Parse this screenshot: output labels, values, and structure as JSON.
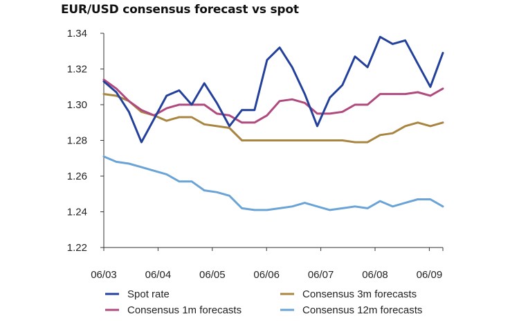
{
  "chart_data": {
    "type": "line",
    "title": "EUR/USD consensus forecast vs spot",
    "xlabel": "",
    "ylabel": "",
    "ylim": [
      1.22,
      1.34
    ],
    "yticks": [
      "1.22",
      "1.24",
      "1.26",
      "1.28",
      "1.30",
      "1.32",
      "1.34"
    ],
    "ytick_values": [
      1.22,
      1.24,
      1.26,
      1.28,
      1.3,
      1.32,
      1.34
    ],
    "xticks": [
      "06/03",
      "06/04",
      "06/05",
      "06/06",
      "06/07",
      "06/08",
      "06/09"
    ],
    "x_index_range": [
      0,
      25
    ],
    "xtick_positions": [
      0,
      4,
      8,
      12,
      16,
      20,
      24
    ],
    "series": [
      {
        "name": "Spot rate",
        "color": "#23409a",
        "values": [
          1.313,
          1.307,
          1.296,
          1.279,
          1.292,
          1.305,
          1.308,
          1.3,
          1.312,
          1.301,
          1.288,
          1.297,
          1.297,
          1.325,
          1.332,
          1.321,
          1.306,
          1.288,
          1.304,
          1.311,
          1.327,
          1.321,
          1.338,
          1.334,
          1.336,
          1.323,
          1.31,
          1.329
        ]
      },
      {
        "name": "Consensus 1m forecasts",
        "color": "#b04a7e",
        "values": [
          1.314,
          1.309,
          1.302,
          1.297,
          1.294,
          1.298,
          1.3,
          1.3,
          1.3,
          1.295,
          1.294,
          1.29,
          1.29,
          1.294,
          1.302,
          1.303,
          1.301,
          1.295,
          1.295,
          1.296,
          1.3,
          1.3,
          1.306,
          1.306,
          1.306,
          1.307,
          1.305,
          1.309
        ]
      },
      {
        "name": "Consensus 3m forecasts",
        "color": "#a88540",
        "values": [
          1.306,
          1.305,
          1.302,
          1.296,
          1.294,
          1.291,
          1.293,
          1.293,
          1.289,
          1.288,
          1.287,
          1.28,
          1.28,
          1.28,
          1.28,
          1.28,
          1.28,
          1.28,
          1.28,
          1.28,
          1.279,
          1.279,
          1.283,
          1.284,
          1.288,
          1.29,
          1.288,
          1.29
        ]
      },
      {
        "name": "Consensus 12m forecasts",
        "color": "#6aa3d6",
        "values": [
          1.271,
          1.268,
          1.267,
          1.265,
          1.263,
          1.261,
          1.257,
          1.257,
          1.252,
          1.251,
          1.249,
          1.242,
          1.241,
          1.241,
          1.242,
          1.243,
          1.245,
          1.243,
          1.241,
          1.242,
          1.243,
          1.242,
          1.246,
          1.243,
          1.245,
          1.247,
          1.247,
          1.243
        ]
      }
    ],
    "legend": [
      "Spot rate",
      "Consensus 1m forecasts",
      "Consensus 3m forecasts",
      "Consensus 12m forecasts"
    ],
    "legend_placement": "bottom",
    "grid": false
  }
}
